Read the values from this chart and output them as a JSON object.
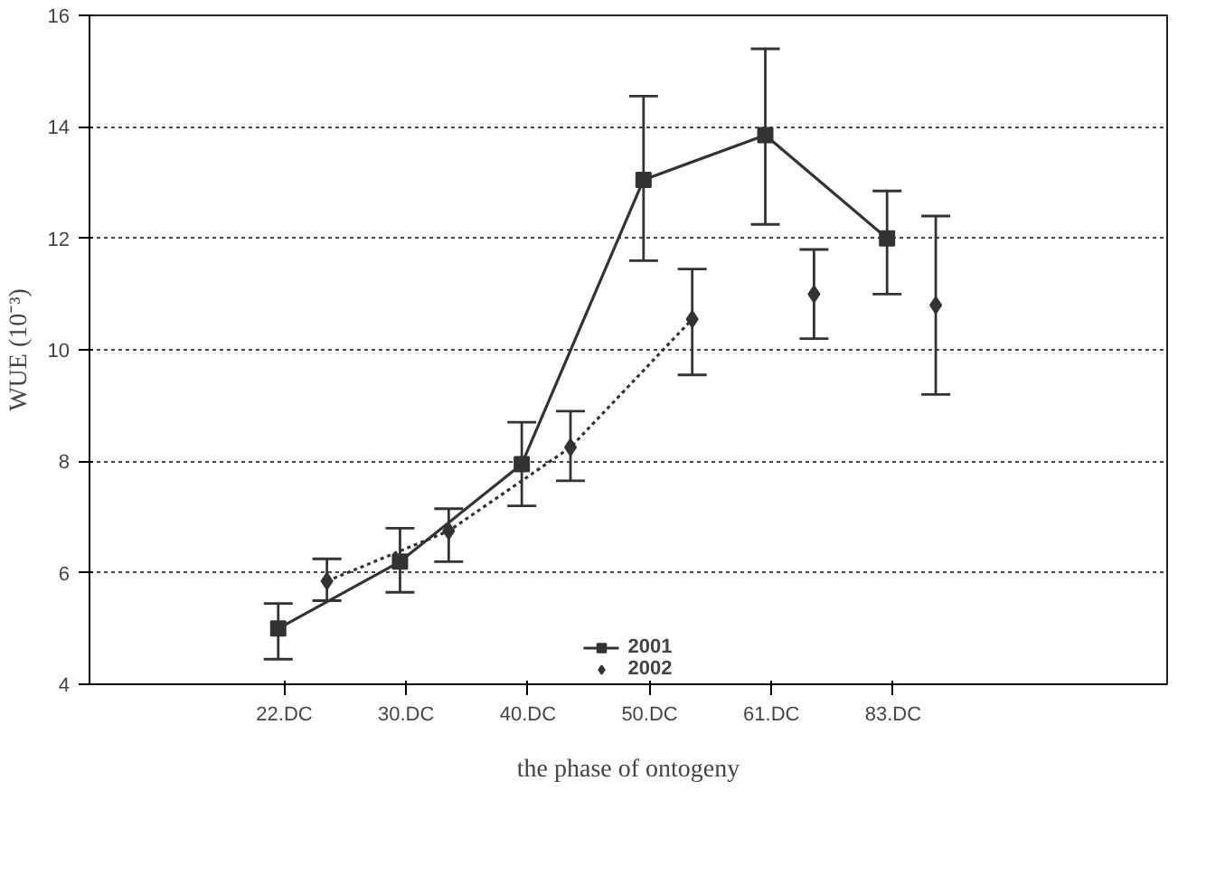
{
  "chart_data": {
    "type": "line",
    "xlabel": "the phase of ontogeny",
    "ylabel": "WUE (10⁻³)",
    "categories": [
      "22.DC",
      "30.DC",
      "40.DC",
      "50.DC",
      "61.DC",
      "83.DC"
    ],
    "ylim": [
      4,
      16
    ],
    "yticks": [
      4,
      6,
      8,
      10,
      12,
      14,
      16
    ],
    "grid": "y",
    "legend": "bottom",
    "series": [
      {
        "name": "2001",
        "color": "#333333",
        "marker": "square",
        "line_style": "solid",
        "values": [
          5.0,
          6.2,
          7.95,
          13.05,
          13.85,
          12.0
        ],
        "errors": [
          [
            4.45,
            5.45
          ],
          [
            5.65,
            6.8
          ],
          [
            7.2,
            8.7
          ],
          [
            11.6,
            14.55
          ],
          [
            12.25,
            15.4
          ],
          [
            11.0,
            12.85
          ]
        ]
      },
      {
        "name": "2002",
        "type": "scatter",
        "color": "#333333",
        "marker": "diamond",
        "values": [
          5.85,
          6.75,
          8.25,
          10.55,
          11.0,
          10.8
        ],
        "errors": [
          [
            5.5,
            6.25
          ],
          [
            6.2,
            7.15
          ],
          [
            7.65,
            8.9
          ],
          [
            9.55,
            11.45
          ],
          [
            10.2,
            11.8
          ],
          [
            9.2,
            12.4
          ]
        ]
      },
      {
        "type": "line",
        "color": "#333333",
        "marker": "none",
        "line_style": "dotted",
        "values": [
          5.85,
          6.75,
          8.25,
          10.55,
          null,
          null
        ]
      }
    ]
  }
}
